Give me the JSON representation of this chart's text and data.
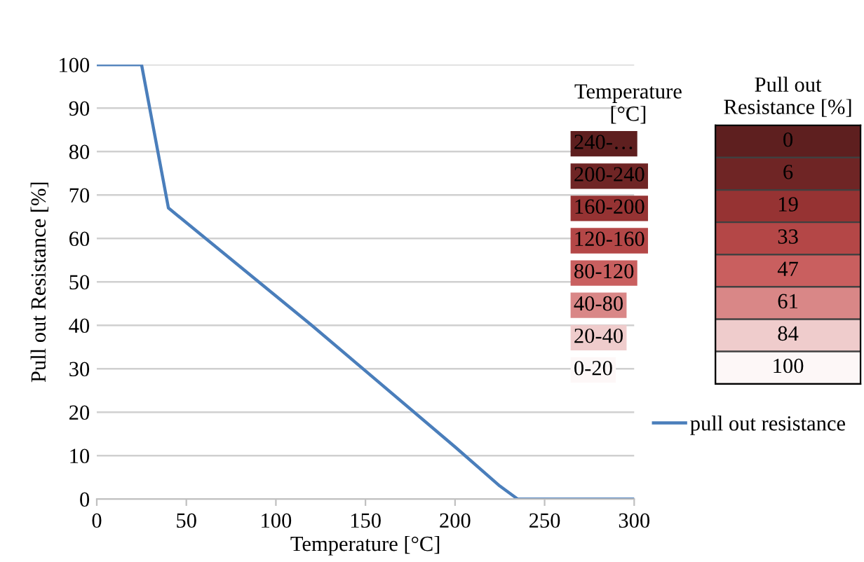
{
  "chart_data": [
    {
      "type": "line",
      "xlabel": "Temperature [°C]",
      "ylabel": "Pull out Resistance [%]",
      "xlim": [
        0,
        300
      ],
      "xticks": [
        0,
        50,
        100,
        150,
        200,
        250,
        300
      ],
      "ylim": [
        0,
        100
      ],
      "yticks": [
        0,
        10,
        20,
        30,
        40,
        50,
        60,
        70,
        80,
        90,
        100
      ],
      "grid": "y",
      "legend": "right",
      "marker": "none",
      "line_style": "solid",
      "series": [
        {
          "name": "pull out resistance",
          "color": "#4a7ebb",
          "x": [
            0,
            25,
            40,
            120,
            200,
            225,
            235,
            300
          ],
          "values": [
            100,
            100,
            67,
            40,
            12,
            3,
            0,
            0
          ]
        }
      ]
    },
    {
      "type": "heatmap",
      "ylabel": "Temperature [°C]",
      "categories": [
        "Pull out Resistance [%]"
      ],
      "y_categories": [
        "240-…",
        "200-240",
        "160-200",
        "120-160",
        "80-120",
        "40-80",
        "20-40",
        "0-20"
      ],
      "cells": [
        [
          0
        ],
        [
          6
        ],
        [
          19
        ],
        [
          33
        ],
        [
          47
        ],
        [
          61
        ],
        [
          84
        ],
        [
          100
        ]
      ],
      "data_labels": true
    }
  ]
}
